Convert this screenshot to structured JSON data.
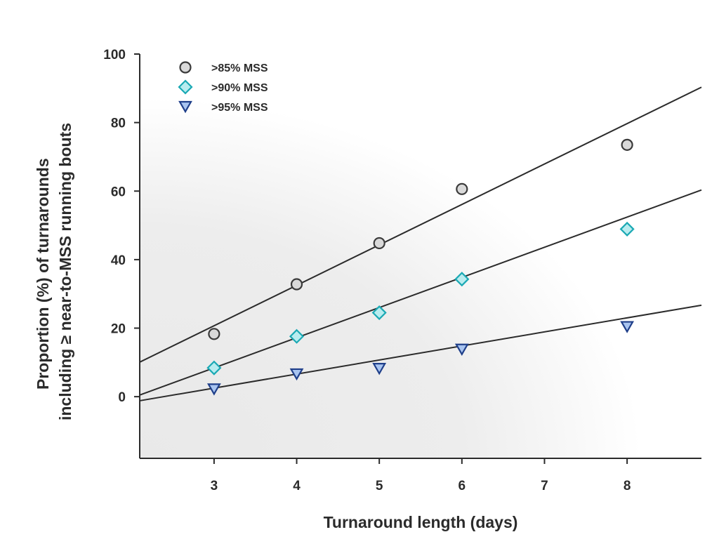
{
  "chart_data": {
    "type": "scatter",
    "xlabel": "Turnaround length (days)",
    "ylabel_lines": [
      "Proportion (%) of turnarounds",
      "including ≥ near-to-MSS running bouts"
    ],
    "xlim": [
      2.1,
      8.9
    ],
    "ylim": [
      -18,
      100
    ],
    "xticks": [
      3,
      4,
      5,
      6,
      7,
      8
    ],
    "yticks": [
      0,
      20,
      40,
      60,
      80,
      100
    ],
    "grid": false,
    "legend_position": "top-left",
    "series": [
      {
        "name": ">85% MSS",
        "marker": "circle",
        "fill": "#d9d9d9",
        "stroke": "#3a3a3a",
        "points": [
          [
            3,
            18.3
          ],
          [
            4,
            32.8
          ],
          [
            5,
            44.8
          ],
          [
            6,
            60.6
          ],
          [
            8,
            73.5
          ]
        ],
        "fit": {
          "slope": 11.8,
          "intercept": -14.7
        }
      },
      {
        "name": ">90% MSS",
        "marker": "diamond",
        "fill": "#b8ecef",
        "stroke": "#1aa9b4",
        "points": [
          [
            3,
            8.4
          ],
          [
            4,
            17.6
          ],
          [
            5,
            24.5
          ],
          [
            6,
            34.3
          ],
          [
            8,
            48.9
          ]
        ],
        "fit": {
          "slope": 8.8,
          "intercept": -18.0
        }
      },
      {
        "name": ">95% MSS",
        "marker": "triangle-down",
        "fill": "#a8c4f0",
        "stroke": "#1f3f8a",
        "points": [
          [
            3,
            2.2
          ],
          [
            4,
            6.6
          ],
          [
            5,
            8.2
          ],
          [
            6,
            13.8
          ],
          [
            8,
            20.4
          ]
        ],
        "fit": {
          "slope": 4.1,
          "intercept": -9.8
        }
      }
    ]
  }
}
